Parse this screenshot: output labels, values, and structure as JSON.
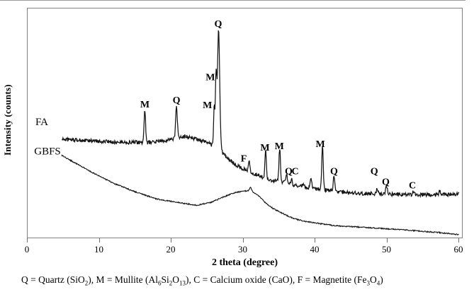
{
  "figure": {
    "y_axis_label": "Intensity (counts)",
    "x_axis_label": "2 theta (degree)"
  },
  "caption": {
    "plain_text": "Q = Quartz (SiO2), M = Mullite (Al6Si2O13), C = Calcium oxide (CaO), F = Magnetite (Fe3O4)",
    "parts": [
      {
        "t": "Q = Quartz (SiO"
      },
      {
        "t": "2",
        "sub": true
      },
      {
        "t": "), M = Mullite (Al"
      },
      {
        "t": "6",
        "sub": true
      },
      {
        "t": "Si"
      },
      {
        "t": "2",
        "sub": true
      },
      {
        "t": "O"
      },
      {
        "t": "13",
        "sub": true
      },
      {
        "t": "), C = Calcium oxide (CaO), F = Magnetite (Fe"
      },
      {
        "t": "3",
        "sub": true
      },
      {
        "t": "O"
      },
      {
        "t": "4",
        "sub": true
      },
      {
        "t": ")"
      }
    ]
  },
  "chart_data": {
    "type": "line",
    "title": "",
    "xlabel": "2 theta (degree)",
    "ylabel": "Intensity (counts)",
    "xlim": [
      0,
      60
    ],
    "ylim": [
      0,
      326
    ],
    "x_ticks": [
      0,
      10,
      20,
      30,
      40,
      50,
      60
    ],
    "y_ticks": [],
    "grid": false,
    "legend_position": "none",
    "line_color": "#141414",
    "axis_color": "#808080",
    "phase_legend": "Q = Quartz, M = Mullite, C = Calcium oxide, F = Magnetite",
    "series": [
      {
        "name": "FA",
        "label": {
          "text": "FA",
          "x": 1.97,
          "y": 160
        },
        "noise": 2.7,
        "x_start": 4.8,
        "x_end": 60,
        "stroke_width": 1.25,
        "baseline": [
          [
            4.8,
            140
          ],
          [
            8,
            138
          ],
          [
            12,
            136
          ],
          [
            16.5,
            135
          ],
          [
            19,
            138
          ],
          [
            22,
            144
          ],
          [
            24.5,
            137
          ],
          [
            25.6,
            132
          ],
          [
            27.3,
            119
          ],
          [
            28.8,
            104
          ],
          [
            30.2,
            97
          ],
          [
            31.7,
            90
          ],
          [
            33.7,
            82
          ],
          [
            35.7,
            79
          ],
          [
            36.9,
            75
          ],
          [
            38.6,
            72
          ],
          [
            40.3,
            69
          ],
          [
            42.1,
            67
          ],
          [
            43.5,
            65
          ],
          [
            46.5,
            63
          ],
          [
            49.5,
            62
          ],
          [
            52.4,
            61
          ],
          [
            55.4,
            61
          ],
          [
            58.3,
            61
          ],
          [
            60,
            62
          ]
        ],
        "peaks": [
          {
            "two_theta": 16.3,
            "apex": 182,
            "width": 0.1,
            "phase": "M"
          },
          {
            "two_theta": 20.7,
            "apex": 185,
            "width": 0.12,
            "phase": "Q"
          },
          {
            "two_theta": 25.95,
            "apex": 187,
            "width": 0.09,
            "phase": "M"
          },
          {
            "two_theta": 26.2,
            "apex": 224,
            "width": 0.09,
            "phase": "M"
          },
          {
            "two_theta": 26.55,
            "apex": 295,
            "width": 0.16,
            "phase": "Q"
          },
          {
            "two_theta": 30.8,
            "apex": 109,
            "width": 0.1,
            "phase": "F"
          },
          {
            "two_theta": 33.1,
            "apex": 124,
            "width": 0.1,
            "phase": "M"
          },
          {
            "two_theta": 35.05,
            "apex": 127,
            "width": 0.1,
            "phase": "M"
          },
          {
            "two_theta": 36.0,
            "apex": 90,
            "width": 0.09,
            "phase": "Q"
          },
          {
            "two_theta": 36.7,
            "apex": 84,
            "width": 0.09,
            "phase": "C"
          },
          {
            "two_theta": 38.3,
            "apex": 77,
            "width": 0.09,
            "phase": ""
          },
          {
            "two_theta": 39.4,
            "apex": 87,
            "width": 0.1,
            "phase": ""
          },
          {
            "two_theta": 41.0,
            "apex": 129,
            "width": 0.1,
            "phase": "M"
          },
          {
            "two_theta": 42.6,
            "apex": 88,
            "width": 0.11,
            "phase": "Q"
          },
          {
            "two_theta": 48.6,
            "apex": 70,
            "width": 0.1,
            "phase": "Q"
          },
          {
            "two_theta": 49.9,
            "apex": 74,
            "width": 0.12,
            "phase": "Q"
          },
          {
            "two_theta": 53.7,
            "apex": 67,
            "width": 0.12,
            "phase": "C"
          },
          {
            "two_theta": 57.3,
            "apex": 68,
            "width": 0.1,
            "phase": ""
          }
        ]
      },
      {
        "name": "GBFS",
        "label": {
          "text": "GBFS",
          "x": 2.76,
          "y": 118
        },
        "noise": 0.8,
        "x_start": 4.7,
        "x_end": 60,
        "stroke_width": 1.1,
        "baseline": [
          [
            4.7,
            117
          ],
          [
            6.1,
            109
          ],
          [
            9.1,
            92
          ],
          [
            12,
            77
          ],
          [
            15,
            65
          ],
          [
            17.9,
            55
          ],
          [
            20.9,
            50
          ],
          [
            23.5,
            46
          ],
          [
            25.5,
            50
          ],
          [
            26.8,
            56
          ],
          [
            28.8,
            64
          ],
          [
            30,
            66
          ],
          [
            31,
            67
          ],
          [
            32.2,
            59
          ],
          [
            33,
            50
          ],
          [
            34.2,
            41
          ],
          [
            35.7,
            33
          ],
          [
            37,
            27
          ],
          [
            38.6,
            23
          ],
          [
            40.6,
            20
          ],
          [
            42.6,
            17
          ],
          [
            47.5,
            14
          ],
          [
            52.4,
            11
          ],
          [
            57.3,
            7
          ],
          [
            60,
            4
          ]
        ],
        "peaks": [
          {
            "two_theta": 31.0,
            "apex": 71,
            "width": 0.12,
            "phase": ""
          }
        ]
      }
    ],
    "peak_annotations": [
      {
        "text": "M",
        "x": 16.3,
        "y": 185
      },
      {
        "text": "Q",
        "x": 20.7,
        "y": 191
      },
      {
        "text": "M",
        "x": 25.0,
        "y": 184
      },
      {
        "text": "M",
        "x": 25.4,
        "y": 224
      },
      {
        "text": "Q",
        "x": 26.5,
        "y": 300
      },
      {
        "text": "F",
        "x": 30.05,
        "y": 108
      },
      {
        "text": "M",
        "x": 33.0,
        "y": 124
      },
      {
        "text": "M",
        "x": 35.0,
        "y": 126
      },
      {
        "text": "Q",
        "x": 36.3,
        "y": 90
      },
      {
        "text": "C",
        "x": 37.2,
        "y": 90
      },
      {
        "text": "M",
        "x": 40.7,
        "y": 129
      },
      {
        "text": "Q",
        "x": 42.6,
        "y": 90
      },
      {
        "text": "Q",
        "x": 48.2,
        "y": 90
      },
      {
        "text": "Q",
        "x": 49.8,
        "y": 75
      },
      {
        "text": "C",
        "x": 53.5,
        "y": 70
      }
    ]
  }
}
